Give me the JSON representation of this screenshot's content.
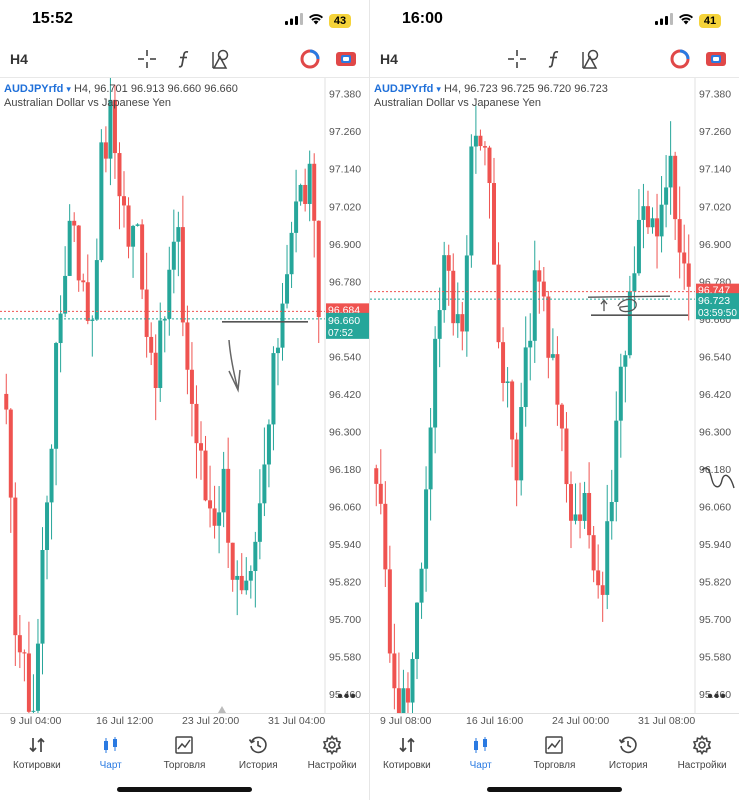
{
  "panels": [
    {
      "id": "left",
      "status": {
        "time": "15:52",
        "battery": "43"
      },
      "toolbar": {
        "timeframe": "H4"
      },
      "symbol": {
        "name": "AUDJPYrfd",
        "dropdown": "▾",
        "quote": "H4, 96.701 96.913 96.660 96.660",
        "description": "Australian Dollar vs Japanese Yen"
      },
      "price_axis": [
        "97.380",
        "97.260",
        "97.140",
        "97.020",
        "96.900",
        "96.780",
        "96.660",
        "96.540",
        "96.420",
        "96.300",
        "96.180",
        "96.060",
        "95.940",
        "95.820",
        "95.700",
        "95.580",
        "95.460"
      ],
      "price_tags": {
        "ask": "96.684",
        "bid": "96.660",
        "timer": "07:52"
      },
      "x_labels": [
        "9 Jul 04:00",
        "16 Jul 12:00",
        "23 Jul 20:00",
        "31 Jul 04:00"
      ],
      "more": "•••"
    },
    {
      "id": "right",
      "status": {
        "time": "16:00",
        "battery": "41"
      },
      "toolbar": {
        "timeframe": "H4"
      },
      "symbol": {
        "name": "AUDJPYrfd",
        "dropdown": "▾",
        "quote": "H4, 96.723 96.725 96.720 96.723",
        "description": "Australian Dollar vs Japanese Yen"
      },
      "price_axis": [
        "97.380",
        "97.260",
        "97.140",
        "97.020",
        "96.900",
        "96.780",
        "96.660",
        "96.540",
        "96.420",
        "96.300",
        "96.180",
        "96.060",
        "95.940",
        "95.820",
        "95.700",
        "95.580",
        "95.460"
      ],
      "price_tags": {
        "ask": "96.747",
        "bid": "96.723",
        "timer": "03:59:50"
      },
      "x_labels": [
        "9 Jul 08:00",
        "16 Jul 16:00",
        "24 Jul 00:00",
        "31 Jul 08:00"
      ],
      "more": "•••"
    }
  ],
  "nav": {
    "items": [
      {
        "label": "Котировки",
        "icon": "quotes-arrows-icon"
      },
      {
        "label": "Чарт",
        "icon": "candlestick-icon"
      },
      {
        "label": "Торговля",
        "icon": "trade-chart-icon"
      },
      {
        "label": "История",
        "icon": "history-clock-icon"
      },
      {
        "label": "Настройки",
        "icon": "settings-gear-icon"
      }
    ],
    "active": "Чарт"
  },
  "colors": {
    "bull": "#26a69a",
    "bear": "#ef5350",
    "accent": "#2a7ae2",
    "symbol": "#1e6fd9",
    "battery": "#f5d33a"
  },
  "chart_data": [
    {
      "type": "candlestick",
      "title": "AUDJPYrfd",
      "subtitle": "Australian Dollar vs Japanese Yen",
      "ylim": [
        95.4,
        97.43
      ],
      "y_ticks": [
        97.38,
        97.26,
        97.14,
        97.02,
        96.9,
        96.78,
        96.66,
        96.54,
        96.42,
        96.3,
        96.18,
        96.06,
        95.94,
        95.82,
        95.7,
        95.58,
        95.46
      ],
      "x_ticks": [
        "9 Jul 04:00",
        "16 Jul 12:00",
        "23 Jul 20:00",
        "31 Jul 04:00"
      ],
      "last_bid": 96.66,
      "last_ask": 96.684,
      "close_path": [
        96.3,
        95.7,
        95.5,
        95.42,
        96.0,
        96.4,
        96.8,
        97.05,
        96.75,
        96.65,
        97.15,
        97.3,
        97.1,
        96.9,
        96.95,
        96.6,
        96.5,
        96.75,
        96.95,
        96.55,
        96.3,
        96.1,
        96.05,
        96.15,
        95.85,
        95.72,
        95.8,
        96.1,
        96.4,
        96.7,
        96.95,
        97.05,
        97.1,
        96.7
      ],
      "steps": 70
    },
    {
      "type": "candlestick",
      "title": "AUDJPYrfd",
      "subtitle": "Australian Dollar vs Japanese Yen",
      "ylim": [
        95.4,
        97.43
      ],
      "y_ticks": [
        97.38,
        97.26,
        97.14,
        97.02,
        96.9,
        96.78,
        96.66,
        96.54,
        96.42,
        96.3,
        96.18,
        96.06,
        95.94,
        95.82,
        95.7,
        95.58,
        95.46
      ],
      "x_ticks": [
        "9 Jul 08:00",
        "16 Jul 16:00",
        "24 Jul 00:00",
        "31 Jul 08:00"
      ],
      "last_bid": 96.723,
      "last_ask": 96.747,
      "close_path": [
        96.2,
        95.8,
        95.5,
        95.42,
        95.6,
        96.0,
        96.5,
        96.85,
        96.7,
        96.6,
        97.2,
        97.3,
        97.05,
        96.55,
        96.35,
        96.2,
        96.6,
        96.9,
        96.6,
        96.4,
        96.15,
        96.05,
        96.1,
        95.85,
        95.8,
        96.2,
        96.55,
        96.8,
        97.0,
        97.02,
        96.95,
        97.15,
        96.85,
        96.72
      ],
      "steps": 70
    }
  ]
}
